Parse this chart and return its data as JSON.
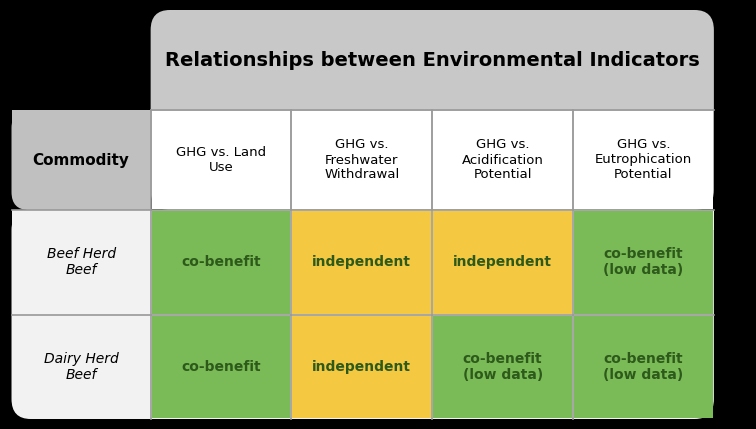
{
  "title": "Relationships between Environmental Indicators",
  "commodity_label": "Commodity",
  "col_headers": [
    "GHG vs. Land\nUse",
    "GHG vs.\nFreshwater\nWithdrawal",
    "GHG vs.\nAcidification\nPotential",
    "GHG vs.\nEutrophication\nPotential"
  ],
  "row_labels": [
    "Beef Herd\nBeef",
    "Dairy Herd\nBeef"
  ],
  "cell_texts": [
    [
      "co-benefit",
      "independent",
      "independent",
      "co-benefit\n(low data)"
    ],
    [
      "co-benefit",
      "independent",
      "co-benefit\n(low data)",
      "co-benefit\n(low data)"
    ]
  ],
  "cell_colors": [
    [
      "#7aba57",
      "#f5c842",
      "#f5c842",
      "#7aba57"
    ],
    [
      "#7aba57",
      "#f5c842",
      "#7aba57",
      "#7aba57"
    ]
  ],
  "header_bg": "#c8c8c8",
  "title_bg": "#c8c8c8",
  "commodity_bg": "#c0c0c0",
  "row_bg": "#f2f2f2",
  "outer_bg": "#000000",
  "title_fontsize": 14,
  "header_fontsize": 9.5,
  "cell_fontsize": 10,
  "commodity_fontsize": 11,
  "row_label_fontsize": 10,
  "border_color": "#c8c8c8",
  "cell_text_color": "#2d5a1b",
  "grid_color": "#999999"
}
